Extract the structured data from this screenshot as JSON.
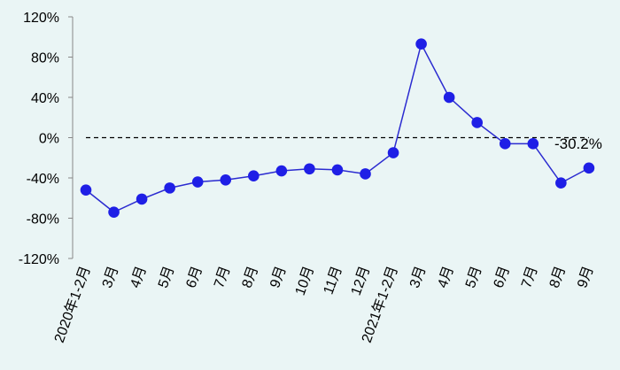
{
  "chart_data": {
    "type": "line",
    "categories": [
      "2020年1-2月",
      "3月",
      "4月",
      "5月",
      "6月",
      "7月",
      "8月",
      "9月",
      "10月",
      "11月",
      "12月",
      "2021年1-2月",
      "3月",
      "4月",
      "5月",
      "6月",
      "7月",
      "8月",
      "9月"
    ],
    "series": [
      {
        "values": [
          -52,
          -74,
          -61,
          -50,
          -44,
          -42,
          -38,
          -33,
          -31,
          -32,
          -36,
          -15,
          93,
          40,
          15,
          -6,
          -6,
          -45,
          -30.2
        ]
      }
    ],
    "y_ticks": [
      "120%",
      "80%",
      "40%",
      "0%",
      "-40%",
      "-80%",
      "-120%"
    ],
    "ylim": [
      -120,
      120
    ],
    "y_unit": "%",
    "reference_line": 0,
    "annotations": [
      {
        "category_index": 18,
        "text": "-30.2%"
      }
    ],
    "colors": {
      "line": "#2b2bd0",
      "marker": "#1f1fe6",
      "background": "#eaf5f5",
      "axis": "#888888"
    },
    "grid": false,
    "legend": "none"
  }
}
